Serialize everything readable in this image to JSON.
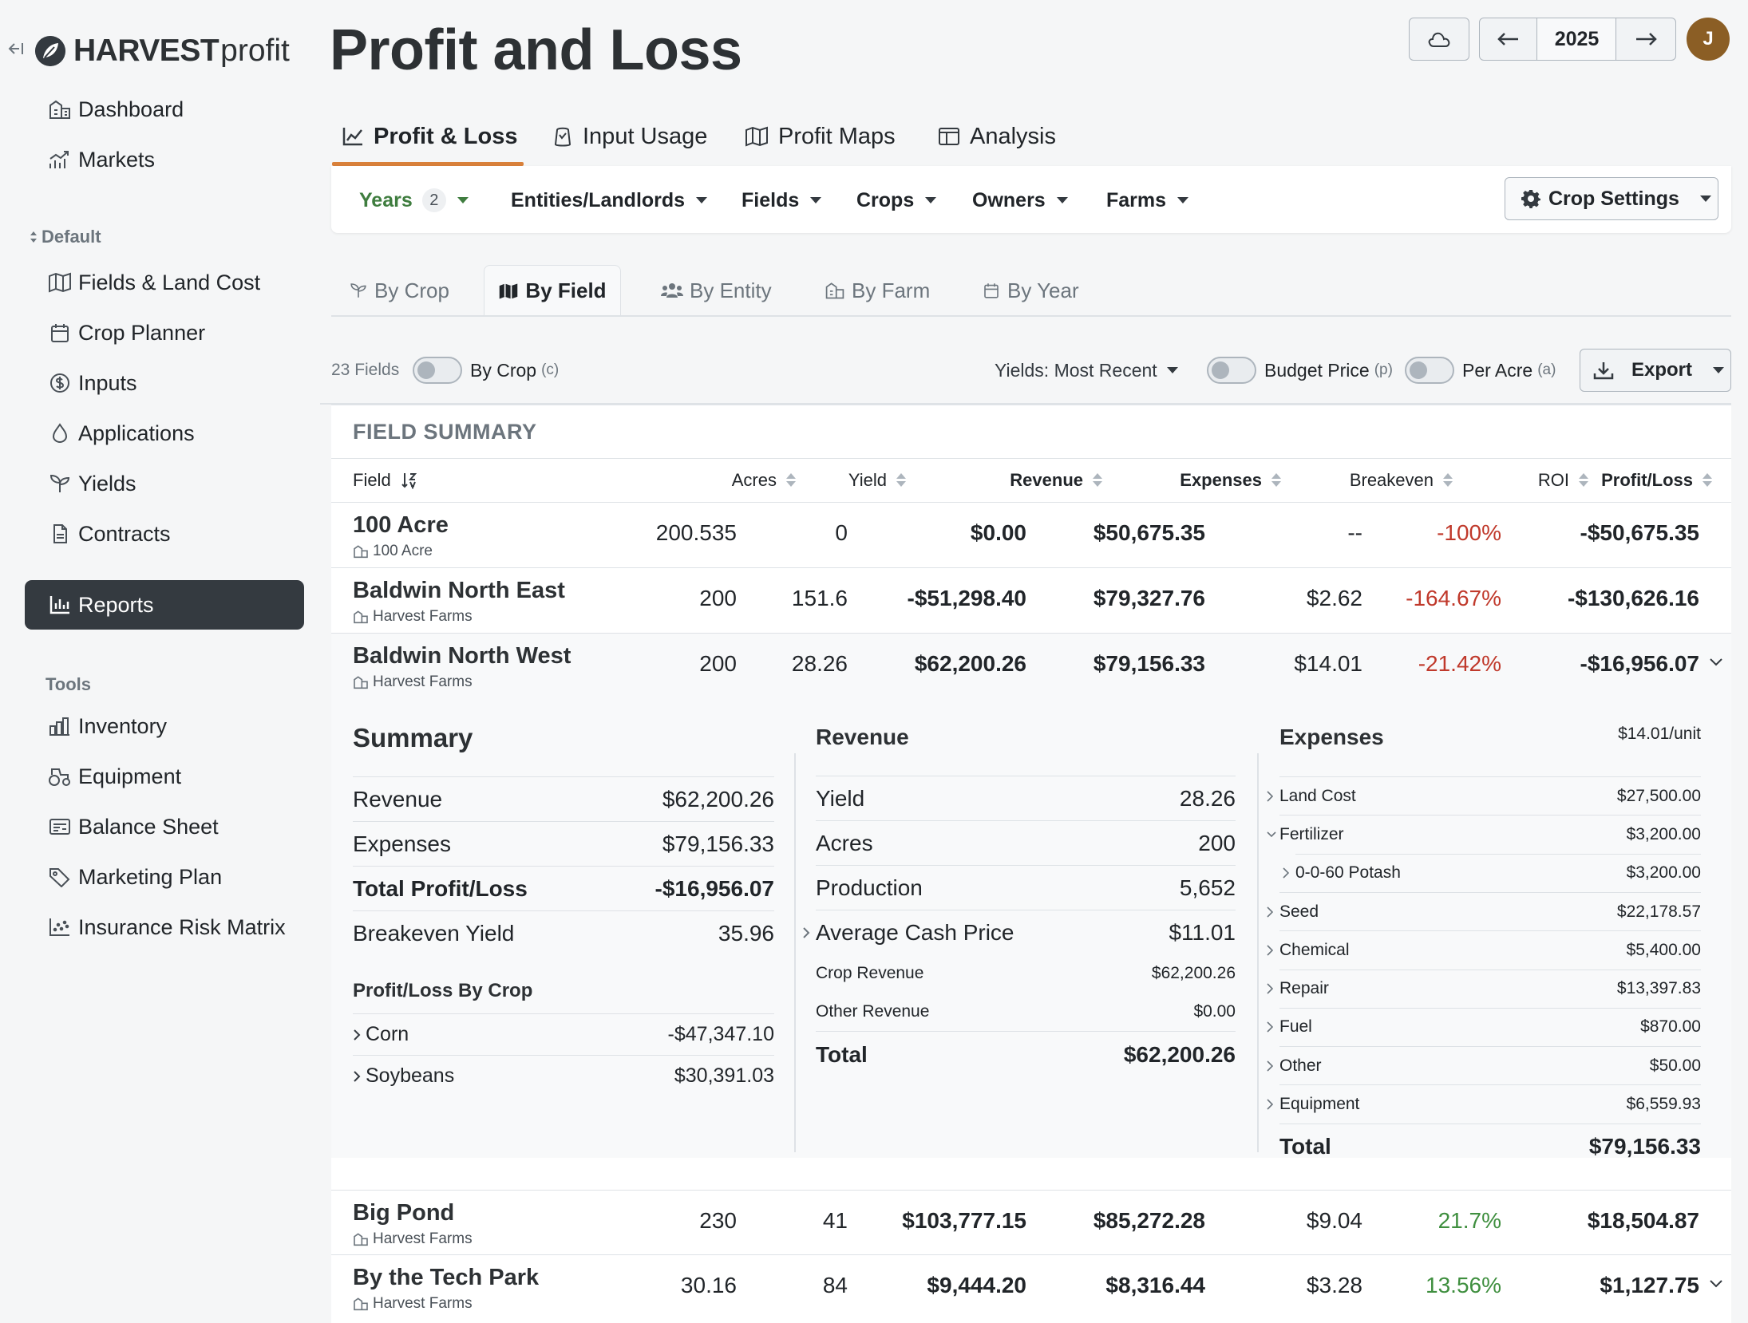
{
  "app": {
    "logo_bold": "HARVEST",
    "logo_light": "profit"
  },
  "sidebar": {
    "items": [
      {
        "label": "Dashboard",
        "icon": "dashboard-icon"
      },
      {
        "label": "Markets",
        "icon": "markets-icon"
      }
    ],
    "default_label": "Default",
    "default_items": [
      {
        "label": "Fields & Land Cost",
        "icon": "map-icon"
      },
      {
        "label": "Crop Planner",
        "icon": "calendar-icon"
      },
      {
        "label": "Inputs",
        "icon": "dollar-circle-icon"
      },
      {
        "label": "Applications",
        "icon": "droplet-icon"
      },
      {
        "label": "Yields",
        "icon": "sprout-icon"
      },
      {
        "label": "Contracts",
        "icon": "document-icon"
      },
      {
        "label": "Reports",
        "icon": "bar-chart-icon",
        "active": true
      }
    ],
    "tools_label": "Tools",
    "tools_items": [
      {
        "label": "Inventory",
        "icon": "inventory-icon"
      },
      {
        "label": "Equipment",
        "icon": "tractor-icon"
      },
      {
        "label": "Balance Sheet",
        "icon": "balance-sheet-icon"
      },
      {
        "label": "Marketing Plan",
        "icon": "tag-icon"
      },
      {
        "label": "Insurance Risk Matrix",
        "icon": "scatter-icon"
      }
    ]
  },
  "header": {
    "title": "Profit and Loss",
    "year": "2025",
    "avatar_initial": "J"
  },
  "main_tabs": [
    {
      "label": "Profit & Loss",
      "active": true
    },
    {
      "label": "Input Usage"
    },
    {
      "label": "Profit Maps"
    },
    {
      "label": "Analysis"
    }
  ],
  "filters": {
    "years": {
      "label": "Years",
      "count": "2"
    },
    "entities": "Entities/Landlords",
    "fields": "Fields",
    "crops": "Crops",
    "owners": "Owners",
    "farms": "Farms",
    "crop_settings": "Crop Settings"
  },
  "sub_tabs": [
    {
      "label": "By Crop"
    },
    {
      "label": "By Field",
      "active": true
    },
    {
      "label": "By Entity"
    },
    {
      "label": "By Farm"
    },
    {
      "label": "By Year"
    }
  ],
  "controls": {
    "field_count": "23 Fields",
    "by_crop": "By Crop",
    "by_crop_key": "(c)",
    "yields": "Yields: Most Recent",
    "budget_price": "Budget Price",
    "budget_key": "(p)",
    "per_acre": "Per Acre",
    "per_acre_key": "(a)",
    "export": "Export"
  },
  "summary": {
    "title": "FIELD SUMMARY",
    "columns": [
      "Field",
      "Acres",
      "Yield",
      "Revenue",
      "Expenses",
      "Breakeven",
      "ROI",
      "Profit/Loss"
    ],
    "rows": [
      {
        "name": "100 Acre",
        "farm": "100 Acre",
        "acres": "200.535",
        "yield": "0",
        "revenue": "$0.00",
        "expenses": "$50,675.35",
        "breakeven": "--",
        "roi": "-100%",
        "roi_sign": "neg",
        "pl": "-$50,675.35"
      },
      {
        "name": "Baldwin North East",
        "farm": "Harvest Farms",
        "acres": "200",
        "yield": "151.6",
        "revenue": "-$51,298.40",
        "expenses": "$79,327.76",
        "breakeven": "$2.62",
        "roi": "-164.67%",
        "roi_sign": "neg",
        "pl": "-$130,626.16"
      },
      {
        "name": "Baldwin North West",
        "farm": "Harvest Farms",
        "acres": "200",
        "yield": "28.26",
        "revenue": "$62,200.26",
        "expenses": "$79,156.33",
        "breakeven": "$14.01",
        "roi": "-21.42%",
        "roi_sign": "neg",
        "pl": "-$16,956.07"
      },
      {
        "name": "Big Pond",
        "farm": "Harvest Farms",
        "acres": "230",
        "yield": "41",
        "revenue": "$103,777.15",
        "expenses": "$85,272.28",
        "breakeven": "$9.04",
        "roi": "21.7%",
        "roi_sign": "pos",
        "pl": "$18,504.87"
      },
      {
        "name": "By the Tech Park",
        "farm": "Harvest Farms",
        "acres": "30.16",
        "yield": "84",
        "revenue": "$9,444.20",
        "expenses": "$8,316.44",
        "breakeven": "$3.28",
        "roi": "13.56%",
        "roi_sign": "pos",
        "pl": "$1,127.75"
      }
    ]
  },
  "detail": {
    "summary_title": "Summary",
    "summary_rows": [
      {
        "k": "Revenue",
        "v": "$62,200.26"
      },
      {
        "k": "Expenses",
        "v": "$79,156.33"
      },
      {
        "k": "Total Profit/Loss",
        "v": "-$16,956.07"
      },
      {
        "k": "Breakeven Yield",
        "v": "35.96"
      }
    ],
    "by_crop_title": "Profit/Loss By Crop",
    "by_crop_rows": [
      {
        "k": "Corn",
        "v": "-$47,347.10"
      },
      {
        "k": "Soybeans",
        "v": "$30,391.03"
      }
    ],
    "revenue_title": "Revenue",
    "revenue_rows": [
      {
        "k": "Yield",
        "v": "28.26"
      },
      {
        "k": "Acres",
        "v": "200"
      },
      {
        "k": "Production",
        "v": "5,652"
      },
      {
        "k": "Average Cash Price",
        "v": "$11.01"
      }
    ],
    "revenue_sub_rows": [
      {
        "k": "Crop Revenue",
        "v": "$62,200.26"
      },
      {
        "k": "Other Revenue",
        "v": "$0.00"
      }
    ],
    "revenue_total": {
      "k": "Total",
      "v": "$62,200.26"
    },
    "expenses_title": "Expenses",
    "expenses_unit": "$14.01/unit",
    "expense_rows": [
      {
        "k": "Land Cost",
        "v": "$27,500.00"
      },
      {
        "k": "Fertilizer",
        "v": "$3,200.00"
      },
      {
        "k": "0-0-60 Potash",
        "v": "$3,200.00"
      },
      {
        "k": "Seed",
        "v": "$22,178.57"
      },
      {
        "k": "Chemical",
        "v": "$5,400.00"
      },
      {
        "k": "Repair",
        "v": "$13,397.83"
      },
      {
        "k": "Fuel",
        "v": "$870.00"
      },
      {
        "k": "Other",
        "v": "$50.00"
      },
      {
        "k": "Equipment",
        "v": "$6,559.93"
      }
    ],
    "expenses_total": {
      "k": "Total",
      "v": "$79,156.33"
    }
  }
}
